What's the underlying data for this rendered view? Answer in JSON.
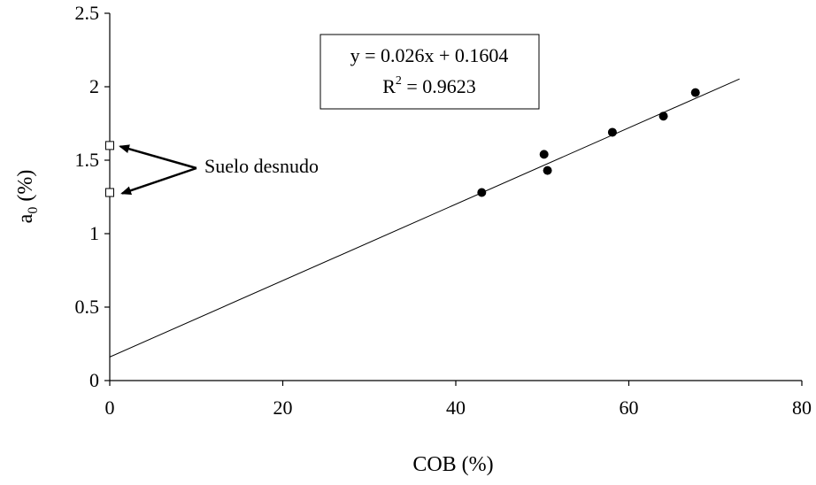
{
  "chart_data": {
    "type": "scatter",
    "xlabel": "COB (%)",
    "ylabel_main": "a",
    "ylabel_sub": "0",
    "ylabel_tail": " (%)",
    "xlim": [
      0,
      80
    ],
    "ylim": [
      0,
      2.5
    ],
    "x_ticks": [
      0,
      20,
      40,
      60,
      80
    ],
    "x_tick_labels": [
      "0",
      "20",
      "40",
      "60",
      "80"
    ],
    "y_ticks": [
      0,
      0.5,
      1,
      1.5,
      2,
      2.5
    ],
    "y_tick_labels": [
      "0",
      "0.5",
      "1",
      "1.5",
      "2",
      "2.5"
    ],
    "grid": false,
    "series": [
      {
        "marker": "filled-circle",
        "color": "#000000",
        "points": [
          {
            "x": 43.0,
            "y": 1.28
          },
          {
            "x": 50.2,
            "y": 1.54
          },
          {
            "x": 50.6,
            "y": 1.43
          },
          {
            "x": 58.1,
            "y": 1.69
          },
          {
            "x": 64.0,
            "y": 1.8
          },
          {
            "x": 67.7,
            "y": 1.96
          }
        ]
      },
      {
        "marker": "open-square",
        "color": "#000000",
        "points": [
          {
            "x": 0,
            "y": 1.6
          },
          {
            "x": 0,
            "y": 1.28
          }
        ]
      }
    ],
    "trendline": {
      "slope": 0.026,
      "intercept": 0.1604,
      "x_start": 0,
      "x_end": 72.8
    },
    "equation_box": {
      "line1": "y = 0.026x + 0.1604",
      "line2_main": "R",
      "line2_sup": "2",
      "line2_tail": " = 0.9623"
    },
    "annotation": {
      "text": "Suelo desnudo",
      "targets": [
        {
          "x": 0,
          "y": 1.6
        },
        {
          "x": 0,
          "y": 1.28
        }
      ]
    }
  }
}
